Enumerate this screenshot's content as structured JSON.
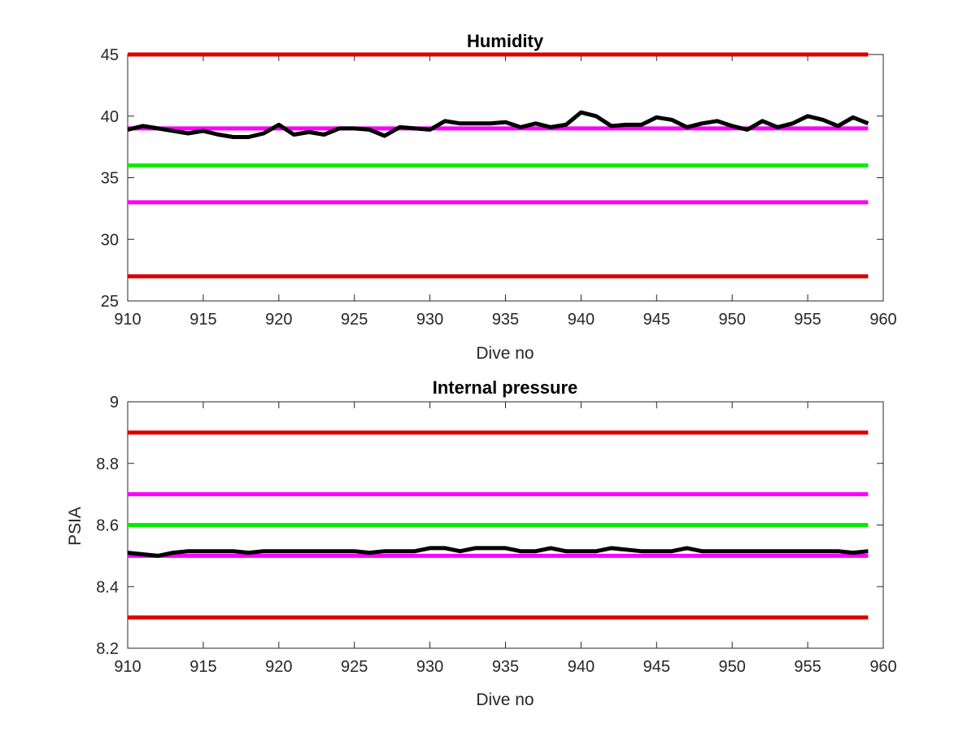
{
  "chart_data": [
    {
      "type": "line",
      "title": "Humidity",
      "xlabel": "Dive no",
      "ylabel": "",
      "xlim": [
        910,
        960
      ],
      "ylim": [
        25,
        45
      ],
      "x_ticks": [
        "910",
        "915",
        "920",
        "925",
        "930",
        "935",
        "940",
        "945",
        "950",
        "955",
        "960"
      ],
      "y_ticks": [
        "25",
        "30",
        "35",
        "40",
        "45"
      ],
      "grid": false,
      "reference_lines": [
        {
          "y": 45,
          "color": "#dd0000"
        },
        {
          "y": 39,
          "color": "#ff00ff"
        },
        {
          "y": 36,
          "color": "#00ee00"
        },
        {
          "y": 33,
          "color": "#ff00ff"
        },
        {
          "y": 27,
          "color": "#dd0000"
        }
      ],
      "series": [
        {
          "color": "#000000",
          "x": [
            910,
            911,
            912,
            913,
            914,
            915,
            916,
            917,
            918,
            919,
            920,
            921,
            922,
            923,
            924,
            925,
            926,
            927,
            928,
            929,
            930,
            931,
            932,
            933,
            934,
            935,
            936,
            937,
            938,
            939,
            940,
            941,
            942,
            943,
            944,
            945,
            946,
            947,
            948,
            949,
            950,
            951,
            952,
            953,
            954,
            955,
            956,
            957,
            958,
            959
          ],
          "y": [
            38.9,
            39.2,
            39.0,
            38.8,
            38.6,
            38.8,
            38.5,
            38.3,
            38.3,
            38.6,
            39.3,
            38.5,
            38.7,
            38.5,
            39.0,
            39.0,
            38.9,
            38.4,
            39.1,
            39.0,
            38.9,
            39.6,
            39.4,
            39.4,
            39.4,
            39.5,
            39.1,
            39.4,
            39.1,
            39.3,
            40.3,
            40.0,
            39.2,
            39.3,
            39.3,
            39.9,
            39.7,
            39.1,
            39.4,
            39.6,
            39.2,
            38.9,
            39.6,
            39.1,
            39.4,
            40.0,
            39.7,
            39.2,
            39.9,
            39.4
          ]
        }
      ]
    },
    {
      "type": "line",
      "title": "Internal pressure",
      "xlabel": "Dive no",
      "ylabel": "PSIA",
      "xlim": [
        910,
        960
      ],
      "ylim": [
        8.2,
        9.0
      ],
      "x_ticks": [
        "910",
        "915",
        "920",
        "925",
        "930",
        "935",
        "940",
        "945",
        "950",
        "955",
        "960"
      ],
      "y_ticks": [
        "8.2",
        "8.4",
        "8.6",
        "8.8",
        "9"
      ],
      "grid": false,
      "reference_lines": [
        {
          "y": 8.9,
          "color": "#dd0000"
        },
        {
          "y": 8.7,
          "color": "#ff00ff"
        },
        {
          "y": 8.6,
          "color": "#00ee00"
        },
        {
          "y": 8.5,
          "color": "#ff00ff"
        },
        {
          "y": 8.3,
          "color": "#dd0000"
        }
      ],
      "series": [
        {
          "color": "#000000",
          "x": [
            910,
            911,
            912,
            913,
            914,
            915,
            916,
            917,
            918,
            919,
            920,
            921,
            922,
            923,
            924,
            925,
            926,
            927,
            928,
            929,
            930,
            931,
            932,
            933,
            934,
            935,
            936,
            937,
            938,
            939,
            940,
            941,
            942,
            943,
            944,
            945,
            946,
            947,
            948,
            949,
            950,
            951,
            952,
            953,
            954,
            955,
            956,
            957,
            958,
            959
          ],
          "y": [
            8.51,
            8.505,
            8.5,
            8.51,
            8.515,
            8.515,
            8.515,
            8.515,
            8.51,
            8.515,
            8.515,
            8.515,
            8.515,
            8.515,
            8.515,
            8.515,
            8.51,
            8.515,
            8.515,
            8.515,
            8.525,
            8.525,
            8.515,
            8.525,
            8.525,
            8.525,
            8.515,
            8.515,
            8.525,
            8.515,
            8.515,
            8.515,
            8.525,
            8.52,
            8.515,
            8.515,
            8.515,
            8.525,
            8.515,
            8.515,
            8.515,
            8.515,
            8.515,
            8.515,
            8.515,
            8.515,
            8.515,
            8.515,
            8.51,
            8.515
          ]
        }
      ]
    }
  ]
}
